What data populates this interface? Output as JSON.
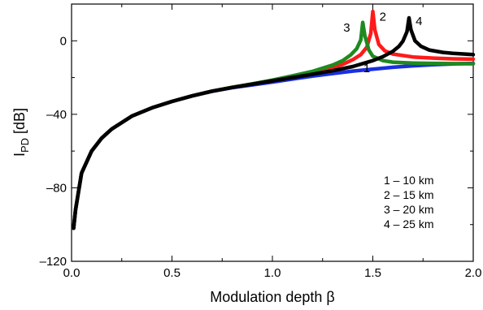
{
  "chart_data": {
    "type": "line",
    "title": "",
    "xlabel": "Modulation depth β",
    "ylabel_main": "I",
    "ylabel_sub": "PD",
    "ylabel_unit": " [dB]",
    "xlim": [
      0,
      2
    ],
    "ylim": [
      -120,
      20
    ],
    "x_ticks": [
      0,
      0.5,
      1,
      1.5,
      2
    ],
    "x_tick_labels": [
      "0.0",
      "0.5",
      "1.0",
      "1.5",
      "2.0"
    ],
    "y_ticks": [
      -120,
      -80,
      -40,
      0
    ],
    "y_tick_labels": [
      "–120",
      "–80",
      "–40",
      "0"
    ],
    "grid": false,
    "legend_position": "bottom-right",
    "legend_entries": [
      "1 – 10 km",
      "2 – 15 km",
      "3 – 20 km",
      "4 – 25 km"
    ],
    "series": [
      {
        "label": "1",
        "color": "#1a2fe0",
        "x": [
          0.01,
          0.02,
          0.05,
          0.1,
          0.15,
          0.2,
          0.3,
          0.4,
          0.5,
          0.6,
          0.7,
          0.8,
          0.9,
          1.0,
          1.1,
          1.2,
          1.3,
          1.4,
          1.5,
          1.6,
          1.7,
          1.8,
          1.9,
          2.0
        ],
        "y": [
          -102,
          -92,
          -72,
          -60,
          -53,
          -48,
          -41,
          -36.5,
          -33,
          -30,
          -27.5,
          -25.5,
          -24,
          -22.5,
          -20.8,
          -19.2,
          -17.8,
          -16.5,
          -15.4,
          -14.4,
          -13.6,
          -13,
          -12.6,
          -12.3
        ]
      },
      {
        "label": "2",
        "color": "#ff1a1a",
        "x": [
          0.01,
          0.02,
          0.05,
          0.1,
          0.15,
          0.2,
          0.3,
          0.4,
          0.5,
          0.6,
          0.7,
          0.8,
          0.9,
          1.0,
          1.1,
          1.2,
          1.3,
          1.35,
          1.4,
          1.44,
          1.47,
          1.49,
          1.5,
          1.51,
          1.53,
          1.56,
          1.6,
          1.7,
          1.8,
          1.9,
          2.0
        ],
        "y": [
          -102,
          -92,
          -72,
          -60,
          -53,
          -48,
          -41,
          -36.5,
          -33,
          -30,
          -27.4,
          -25.3,
          -23.5,
          -21.6,
          -19.5,
          -17.3,
          -14.6,
          -12.8,
          -10.3,
          -7.5,
          -3.5,
          4,
          16,
          6,
          -2,
          -5.5,
          -7.2,
          -8.8,
          -9.4,
          -9.8,
          -10
        ]
      },
      {
        "label": "3",
        "color": "#1f8a1f",
        "x": [
          0.01,
          0.02,
          0.05,
          0.1,
          0.15,
          0.2,
          0.3,
          0.4,
          0.5,
          0.6,
          0.7,
          0.8,
          0.9,
          1.0,
          1.1,
          1.2,
          1.3,
          1.35,
          1.39,
          1.42,
          1.44,
          1.45,
          1.46,
          1.48,
          1.5,
          1.55,
          1.6,
          1.7,
          1.8,
          1.9,
          2.0
        ],
        "y": [
          -102,
          -92,
          -72,
          -60,
          -53,
          -48,
          -41,
          -36.5,
          -33,
          -30,
          -27.4,
          -25.3,
          -23.4,
          -21.4,
          -19.1,
          -16.6,
          -13.2,
          -10.8,
          -7.7,
          -4.3,
          0.5,
          10,
          3,
          -5,
          -8.4,
          -10.8,
          -11.6,
          -12.1,
          -12.3,
          -12.4,
          -12.5
        ]
      },
      {
        "label": "4",
        "color": "#000000",
        "x": [
          0.01,
          0.02,
          0.05,
          0.1,
          0.15,
          0.2,
          0.3,
          0.4,
          0.5,
          0.6,
          0.7,
          0.8,
          0.9,
          1.0,
          1.1,
          1.2,
          1.3,
          1.4,
          1.5,
          1.55,
          1.6,
          1.63,
          1.65,
          1.67,
          1.68,
          1.69,
          1.71,
          1.74,
          1.78,
          1.85,
          1.9,
          2.0
        ],
        "y": [
          -102,
          -92,
          -72,
          -60,
          -53,
          -48,
          -41,
          -36.5,
          -33,
          -30,
          -27.4,
          -25.4,
          -23.6,
          -21.8,
          -20,
          -18.2,
          -16.3,
          -14,
          -10.8,
          -8.6,
          -5.7,
          -3,
          -0.2,
          5,
          12.5,
          6,
          0,
          -3,
          -5,
          -6.3,
          -6.8,
          -7.5
        ]
      }
    ],
    "curve_labels": [
      {
        "text": "1",
        "x": 1.47,
        "y": -17
      },
      {
        "text": "2",
        "x": 1.55,
        "y": 11
      },
      {
        "text": "3",
        "x": 1.37,
        "y": 5
      },
      {
        "text": "4",
        "x": 1.73,
        "y": 8.5
      }
    ]
  }
}
